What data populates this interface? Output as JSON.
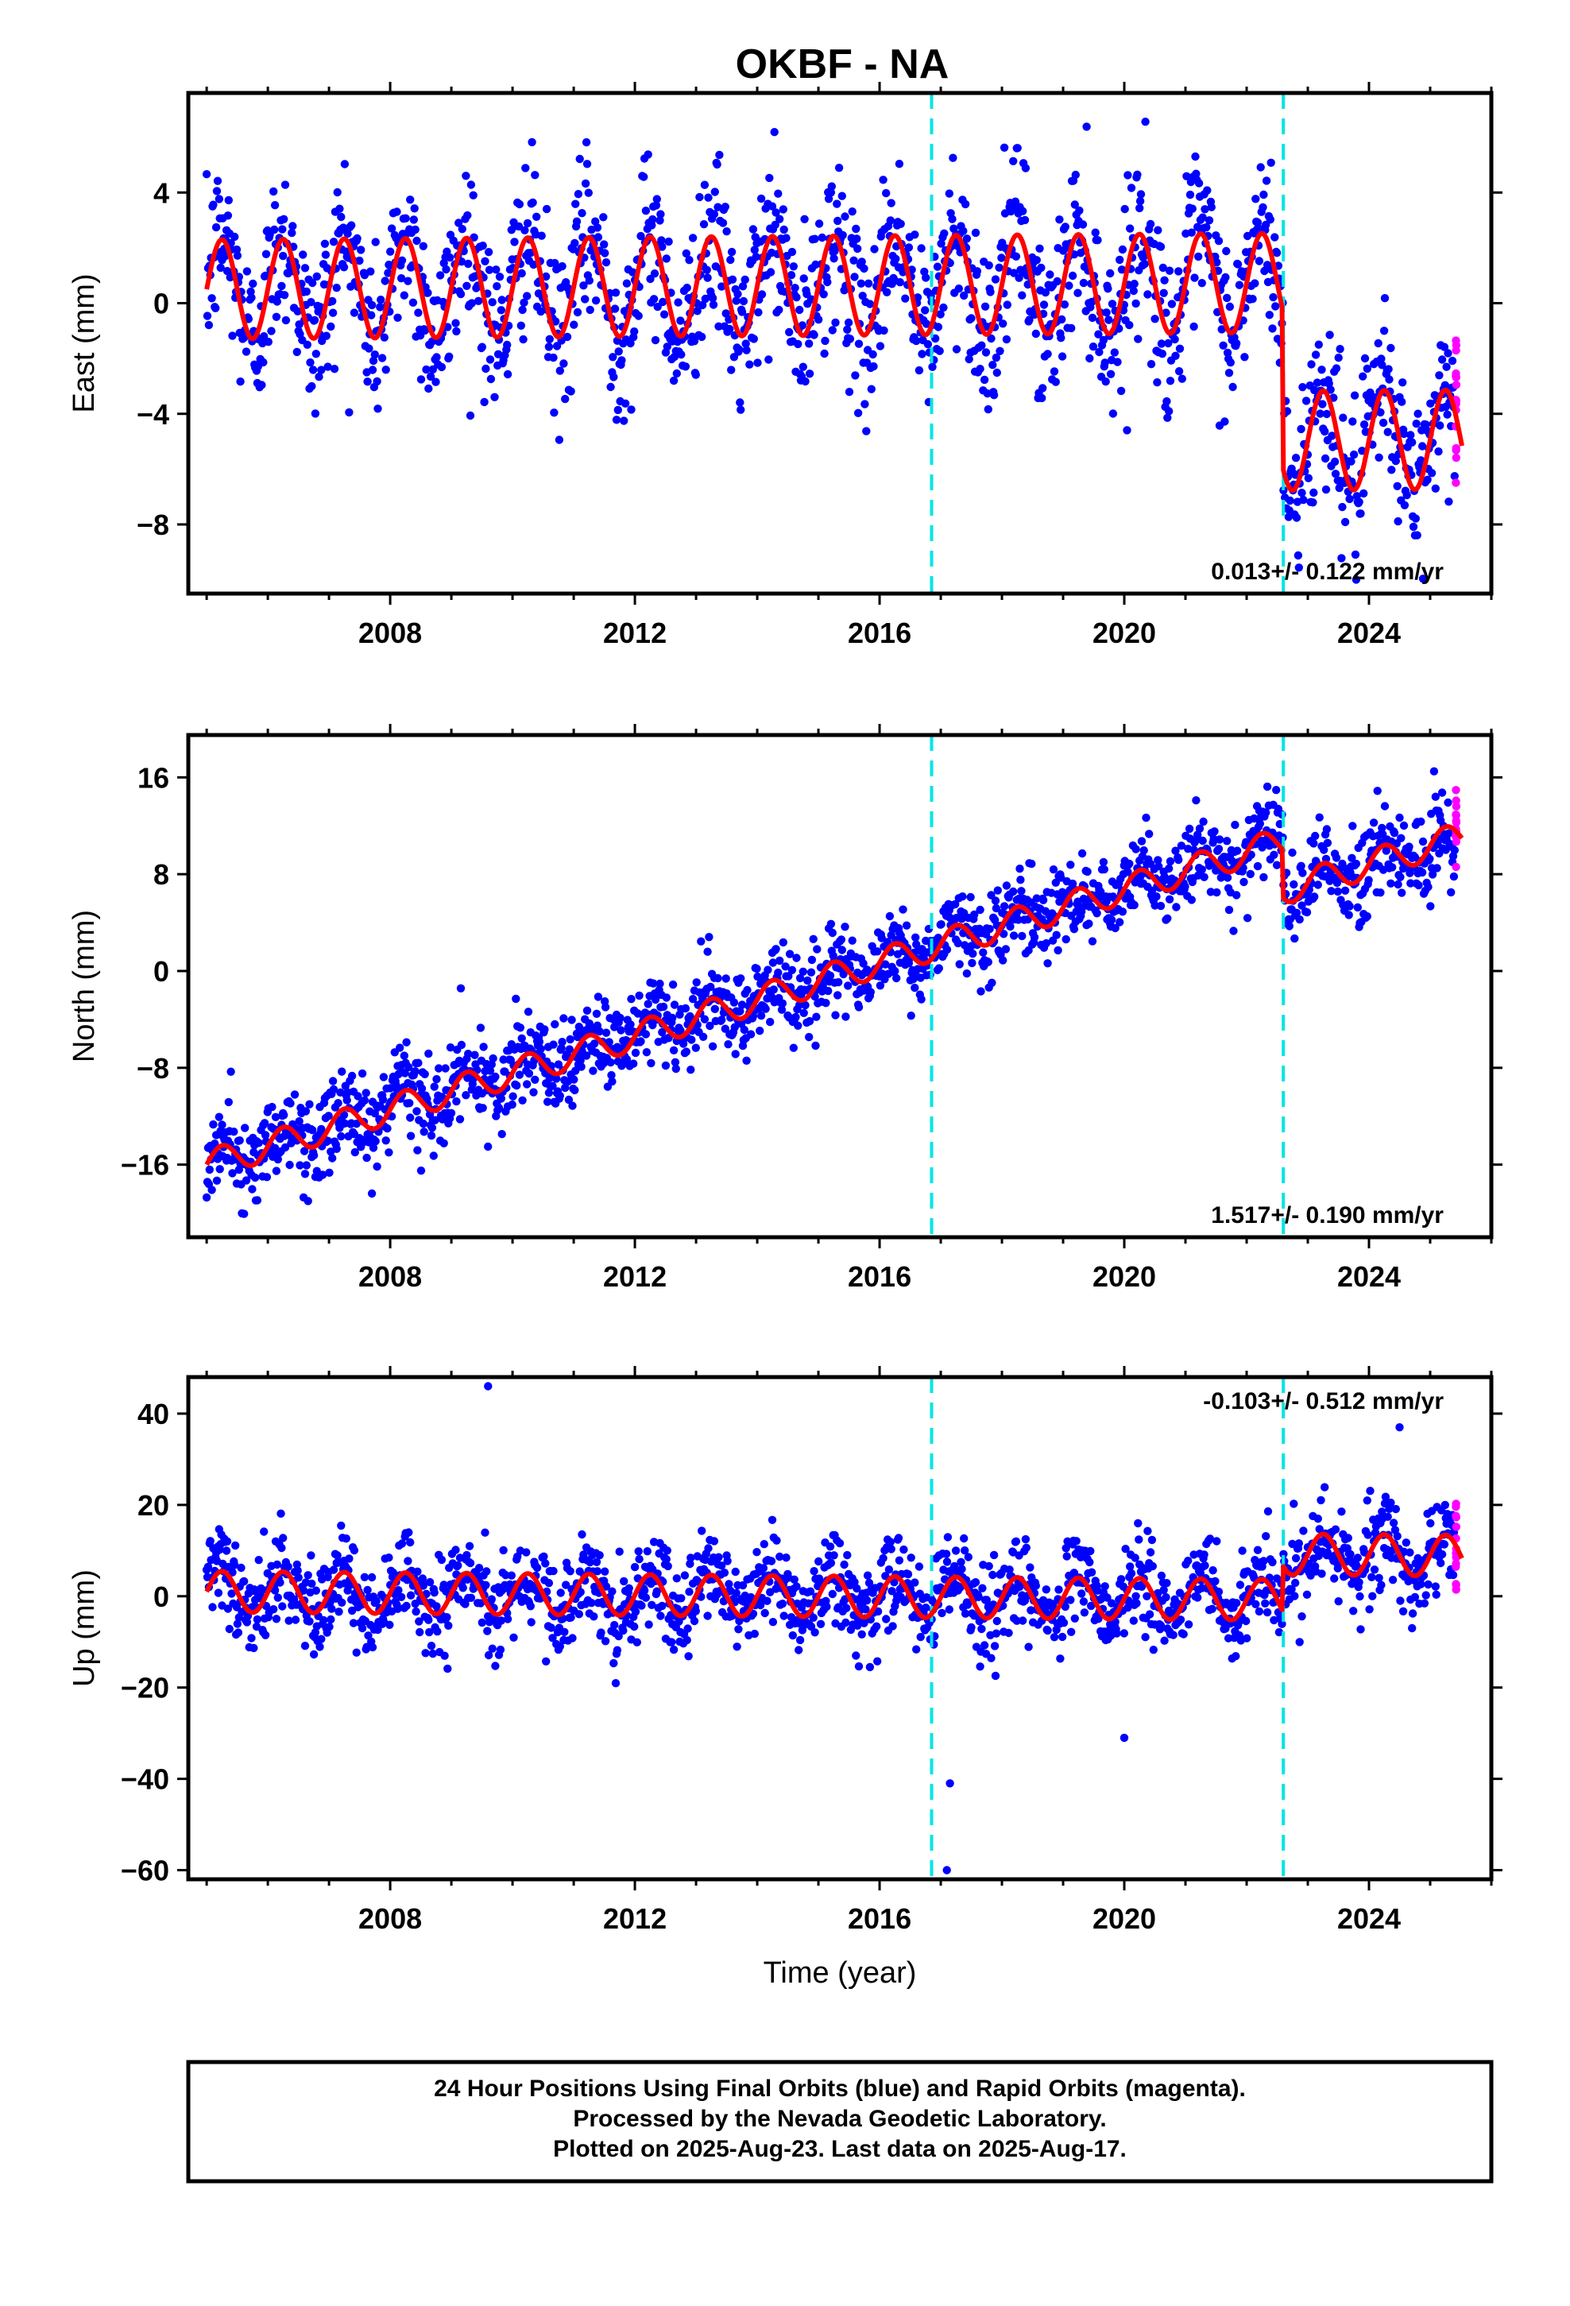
{
  "title": "OKBF - NA",
  "footer": {
    "line1": "24 Hour Positions Using Final Orbits (blue) and Rapid Orbits (magenta).",
    "line2": "Processed by the Nevada Geodetic Laboratory.",
    "line3": "Plotted on 2025-Aug-23. Last data on 2025-Aug-17."
  },
  "colors": {
    "final_orbits": "#0000ff",
    "rapid_orbits": "#ff00ff",
    "model": "#ff0000",
    "steps": "#00e5e5"
  },
  "chart_data": [
    {
      "type": "scatter",
      "name": "east",
      "ylabel": "East (mm)",
      "xlabel": "",
      "xlim": [
        2004.7,
        2026.0
      ],
      "ylim": [
        -10.5,
        7.6
      ],
      "x_ticks": [
        2008,
        2012,
        2016,
        2020,
        2024
      ],
      "y_ticks": [
        -8,
        -4,
        0,
        4
      ],
      "rate_text": "0.013+/- 0.122 mm/yr",
      "rate_position": "bottom-right",
      "data_start": 2005.0,
      "data_end": 2025.4,
      "rapid_start": 2025.4,
      "steps": [
        2016.85,
        2022.6
      ],
      "model": {
        "pre_step_offset": 0.5,
        "post_step_offset": -5.2,
        "trend_per_year": 0.013,
        "annual_amplitude": 1.8,
        "scatter_sd": 1.5
      }
    },
    {
      "type": "scatter",
      "name": "north",
      "ylabel": "North (mm)",
      "xlabel": "",
      "xlim": [
        2004.7,
        2026.0
      ],
      "ylim": [
        -22,
        19.5
      ],
      "x_ticks": [
        2008,
        2012,
        2016,
        2020,
        2024
      ],
      "y_ticks": [
        -16,
        -8,
        0,
        8,
        16
      ],
      "rate_text": "1.517+/- 0.190 mm/yr",
      "rate_position": "bottom-right",
      "data_start": 2005.0,
      "data_end": 2025.4,
      "rapid_start": 2025.4,
      "steps": [
        2016.85,
        2022.6
      ],
      "model": {
        "start_value": -16.0,
        "trend_per_year": 1.517,
        "step_jump": -4.0,
        "annual_amplitude": 1.2,
        "scatter_sd": 1.8
      }
    },
    {
      "type": "scatter",
      "name": "up",
      "ylabel": "Up (mm)",
      "xlabel": "Time (year)",
      "xlim": [
        2004.7,
        2026.0
      ],
      "ylim": [
        -62,
        48
      ],
      "x_ticks": [
        2008,
        2012,
        2016,
        2020,
        2024
      ],
      "y_ticks": [
        -60,
        -40,
        -20,
        0,
        20,
        40
      ],
      "rate_text": "-0.103+/- 0.512 mm/yr",
      "rate_position": "top-right",
      "data_start": 2005.0,
      "data_end": 2025.4,
      "rapid_start": 2025.4,
      "steps": [
        2016.85,
        2022.6
      ],
      "model": {
        "pre_step_offset": 1.0,
        "post_step_offset": 11.0,
        "trend_per_year": -0.103,
        "annual_amplitude": 4.5,
        "scatter_sd": 5.0
      },
      "outliers": [
        [
          2009.6,
          46
        ],
        [
          2017.15,
          -41
        ],
        [
          2017.1,
          -60
        ],
        [
          2020.0,
          -31
        ],
        [
          2024.5,
          37
        ]
      ]
    }
  ]
}
